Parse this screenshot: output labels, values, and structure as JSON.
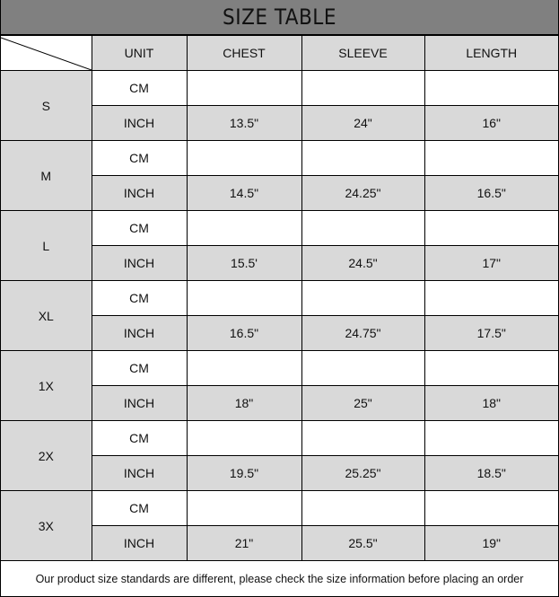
{
  "title": "SIZE TABLE",
  "headers": [
    "UNIT",
    "CHEST",
    "SLEEVE",
    "LENGTH"
  ],
  "rows": [
    {
      "size": "S",
      "cm": {
        "unit": "CM",
        "chest": "",
        "sleeve": "",
        "length": ""
      },
      "inch": {
        "unit": "INCH",
        "chest": "13.5\"",
        "sleeve": "24\"",
        "length": "16\""
      }
    },
    {
      "size": "M",
      "cm": {
        "unit": "CM",
        "chest": "",
        "sleeve": "",
        "length": ""
      },
      "inch": {
        "unit": "INCH",
        "chest": "14.5\"",
        "sleeve": "24.25\"",
        "length": "16.5\""
      }
    },
    {
      "size": "L",
      "cm": {
        "unit": "CM",
        "chest": "",
        "sleeve": "",
        "length": ""
      },
      "inch": {
        "unit": "INCH",
        "chest": "15.5'",
        "sleeve": "24.5\"",
        "length": "17\""
      }
    },
    {
      "size": "XL",
      "cm": {
        "unit": "CM",
        "chest": "",
        "sleeve": "",
        "length": ""
      },
      "inch": {
        "unit": "INCH",
        "chest": "16.5\"",
        "sleeve": "24.75\"",
        "length": "17.5\""
      }
    },
    {
      "size": "1X",
      "cm": {
        "unit": "CM",
        "chest": "",
        "sleeve": "",
        "length": ""
      },
      "inch": {
        "unit": "INCH",
        "chest": "18\"",
        "sleeve": "25\"",
        "length": "18\""
      }
    },
    {
      "size": "2X",
      "cm": {
        "unit": "CM",
        "chest": "",
        "sleeve": "",
        "length": ""
      },
      "inch": {
        "unit": "INCH",
        "chest": "19.5\"",
        "sleeve": "25.25\"",
        "length": "18.5\""
      }
    },
    {
      "size": "3X",
      "cm": {
        "unit": "CM",
        "chest": "",
        "sleeve": "",
        "length": ""
      },
      "inch": {
        "unit": "INCH",
        "chest": "21\"",
        "sleeve": "25.5\"",
        "length": "19\""
      }
    }
  ],
  "footer": "Our product size standards are different, please check the size information before placing an order",
  "colors": {
    "title_bg": "#808080",
    "cell_gray": "#d9d9d9"
  }
}
